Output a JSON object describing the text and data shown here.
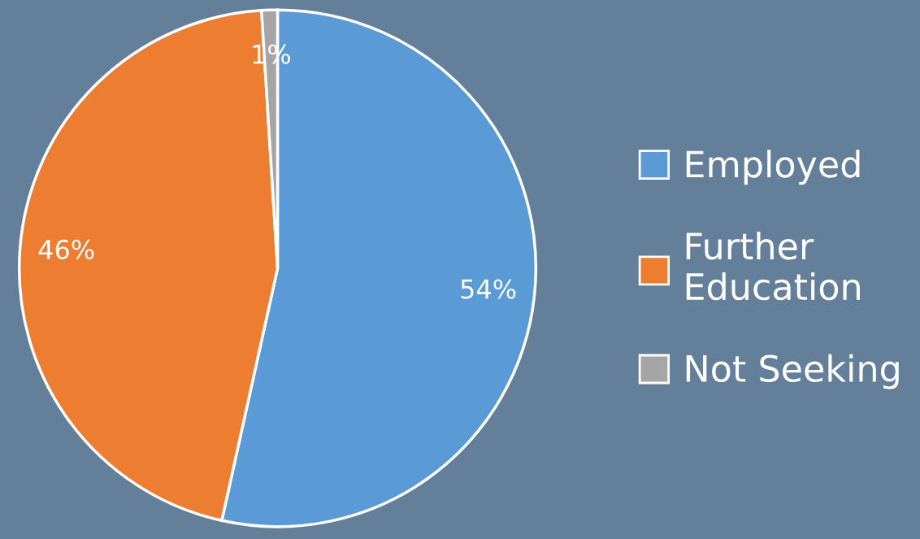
{
  "chart_data": {
    "type": "pie",
    "categories": [
      "Employed",
      "Further Education",
      "Not Seeking"
    ],
    "values": [
      54,
      46,
      1
    ],
    "colors": [
      "#5b9bd5",
      "#ed7d31",
      "#a5a5a5"
    ],
    "value_labels": [
      "54%",
      "46%",
      "1%"
    ],
    "legend": "right"
  }
}
